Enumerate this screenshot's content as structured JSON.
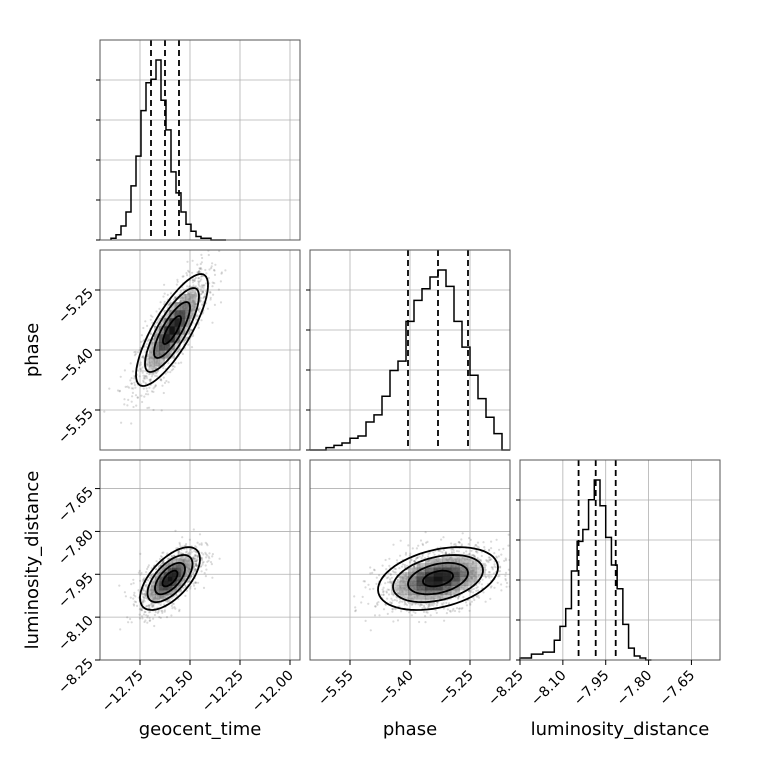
{
  "chart_data": {
    "type": "corner",
    "parameters": [
      "geocent_time",
      "phase",
      "luminosity_distance"
    ],
    "axes": {
      "geocent_time": {
        "range": [
          -12.95,
          -11.95
        ],
        "ticks": [
          -12.75,
          -12.5,
          -12.25,
          -12.0
        ],
        "tick_labels": [
          "−12.75",
          "−12.50",
          "−12.25",
          "−12.00"
        ]
      },
      "phase": {
        "range": [
          -5.65,
          -5.15
        ],
        "ticks": [
          -5.55,
          -5.4,
          -5.25
        ],
        "tick_labels": [
          "−5.55",
          "−5.40",
          "−5.25"
        ]
      },
      "luminosity_distance": {
        "range": [
          -8.25,
          -7.55
        ],
        "ticks": [
          -8.25,
          -8.1,
          -7.95,
          -7.8,
          -7.65
        ],
        "tick_labels": [
          "−8.25",
          "−8.10",
          "−7.95",
          "−7.80",
          "−7.65"
        ]
      }
    },
    "quantiles": {
      "geocent_time": [
        -12.695,
        -12.625,
        -12.555
      ],
      "phase": [
        -5.405,
        -5.33,
        -5.255
      ],
      "luminosity_distance": [
        -8.045,
        -7.985,
        -7.915
      ]
    },
    "histograms": {
      "geocent_time": {
        "edges": [
          -12.895,
          -12.87,
          -12.845,
          -12.82,
          -12.795,
          -12.77,
          -12.745,
          -12.72,
          -12.695,
          -12.67,
          -12.645,
          -12.62,
          -12.595,
          -12.57,
          -12.545,
          -12.52,
          -12.495,
          -12.47,
          -12.445,
          -12.42,
          -12.395,
          -12.37,
          -12.345,
          -12.32
        ],
        "counts": [
          1,
          3,
          8,
          16,
          31,
          48,
          74,
          90,
          92,
          103,
          80,
          63,
          39,
          27,
          16,
          9,
          5,
          2,
          1,
          1,
          0,
          0,
          0
        ]
      },
      "phase": {
        "edges": [
          -5.65,
          -5.63,
          -5.61,
          -5.59,
          -5.57,
          -5.55,
          -5.53,
          -5.51,
          -5.49,
          -5.47,
          -5.45,
          -5.43,
          -5.41,
          -5.39,
          -5.37,
          -5.35,
          -5.33,
          -5.31,
          -5.29,
          -5.27,
          -5.25,
          -5.23,
          -5.21,
          -5.19,
          -5.17,
          -5.15
        ],
        "counts": [
          0,
          0,
          1,
          2,
          3,
          5,
          6,
          12,
          15,
          23,
          34,
          38,
          55,
          64,
          69,
          74,
          77,
          70,
          55,
          44,
          32,
          22,
          14,
          7,
          0
        ]
      },
      "luminosity_distance": {
        "edges": [
          -8.25,
          -8.21,
          -8.17,
          -8.13,
          -8.11,
          -8.09,
          -8.07,
          -8.05,
          -8.03,
          -8.01,
          -7.99,
          -7.97,
          -7.95,
          -7.93,
          -7.91,
          -7.89,
          -7.87,
          -7.85,
          -7.83,
          -7.81,
          -7.79
        ],
        "counts": [
          1,
          3,
          4,
          10,
          17,
          26,
          45,
          60,
          66,
          81,
          91,
          78,
          62,
          48,
          36,
          18,
          6,
          2,
          1,
          0
        ]
      }
    },
    "pairs": [
      {
        "x": "geocent_time",
        "y": "phase",
        "mean": [
          -12.59,
          -5.35
        ],
        "sd": [
          0.09,
          0.07
        ],
        "rho": 0.8,
        "contour_levels": [
          0.5,
          1.0,
          1.5,
          2.0
        ]
      },
      {
        "x": "geocent_time",
        "y": "luminosity_distance",
        "mean": [
          -12.6,
          -7.965
        ],
        "sd": [
          0.075,
          0.055
        ],
        "rho": 0.62,
        "contour_levels": [
          0.5,
          1.0,
          1.5,
          2.0
        ]
      },
      {
        "x": "phase",
        "y": "luminosity_distance",
        "mean": [
          -5.33,
          -7.965
        ],
        "sd": [
          0.075,
          0.055
        ],
        "rho": 0.35,
        "contour_levels": [
          0.5,
          1.0,
          1.5,
          2.0
        ]
      }
    ],
    "grid": true
  }
}
